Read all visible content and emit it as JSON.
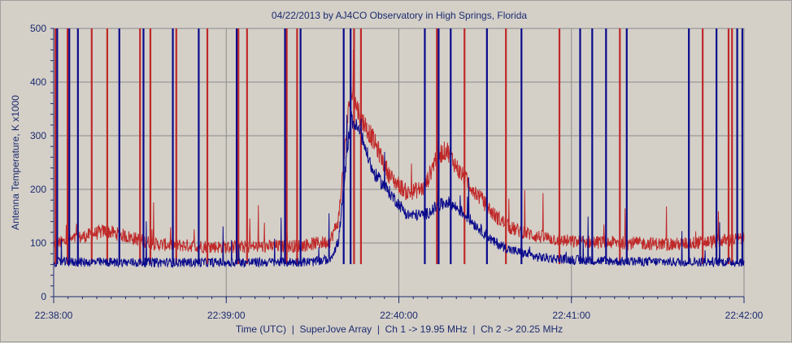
{
  "chart_data": {
    "type": "line",
    "title": "04/22/2013  by  AJ4CO Observatory  in  High Springs, Florida",
    "ylabel": "Antenna Temperature, K x1000",
    "xlabel": "Time (UTC)  |  SuperJove Array  |  Ch 1 -> 19.95 MHz  |  Ch 2 -> 20.25 MHz",
    "ylim": [
      0,
      500
    ],
    "xlim_minutes": [
      0,
      4
    ],
    "y_ticks": [
      "0",
      "100",
      "200",
      "300",
      "400",
      "500"
    ],
    "x_ticks": [
      "22:38:00",
      "22:39:00",
      "22:40:00",
      "22:41:00",
      "22:42:00"
    ],
    "grid": true,
    "series": [
      {
        "name": "Ch 1 -> 19.95 MHz",
        "color": "#0a0a8c",
        "profile_x": [
          0,
          0.5,
          1,
          1.5,
          1.6,
          1.65,
          1.72,
          1.78,
          1.85,
          1.95,
          2.05,
          2.15,
          2.22,
          2.28,
          2.35,
          2.45,
          2.55,
          2.65,
          2.8,
          3.0,
          3.3,
          3.6,
          4.0
        ],
        "profile_y": [
          63,
          62,
          62,
          63,
          68,
          100,
          330,
          300,
          230,
          190,
          150,
          150,
          165,
          175,
          160,
          130,
          100,
          85,
          72,
          67,
          64,
          63,
          63
        ],
        "spikes_minutes": [
          0.02,
          0.09,
          0.14,
          0.38,
          0.52,
          0.69,
          0.84,
          1.06,
          1.34,
          1.43,
          1.68,
          1.72,
          2.15,
          2.23,
          2.3,
          2.51,
          2.71,
          3.05,
          3.12,
          3.2,
          3.32,
          3.68,
          3.84,
          3.96,
          3.99
        ],
        "noise": 14
      },
      {
        "name": "Ch 2 -> 20.25 MHz",
        "color": "#c02828",
        "profile_x": [
          0,
          0.3,
          0.6,
          1,
          1.4,
          1.6,
          1.65,
          1.72,
          1.78,
          1.85,
          1.95,
          2.05,
          2.15,
          2.22,
          2.28,
          2.35,
          2.45,
          2.55,
          2.65,
          2.8,
          3.0,
          3.3,
          3.6,
          4.0
        ],
        "profile_y": [
          95,
          120,
          95,
          90,
          92,
          100,
          140,
          380,
          330,
          290,
          220,
          190,
          200,
          260,
          270,
          230,
          190,
          150,
          125,
          110,
          100,
          98,
          95,
          105
        ],
        "spikes_minutes": [
          0.01,
          0.08,
          0.22,
          0.31,
          0.5,
          0.56,
          0.71,
          0.89,
          1.07,
          1.12,
          1.35,
          1.41,
          1.74,
          1.78,
          2.22,
          2.38,
          2.62,
          2.93,
          3.28,
          3.76,
          3.91,
          3.93
        ],
        "noise": 18
      }
    ]
  }
}
